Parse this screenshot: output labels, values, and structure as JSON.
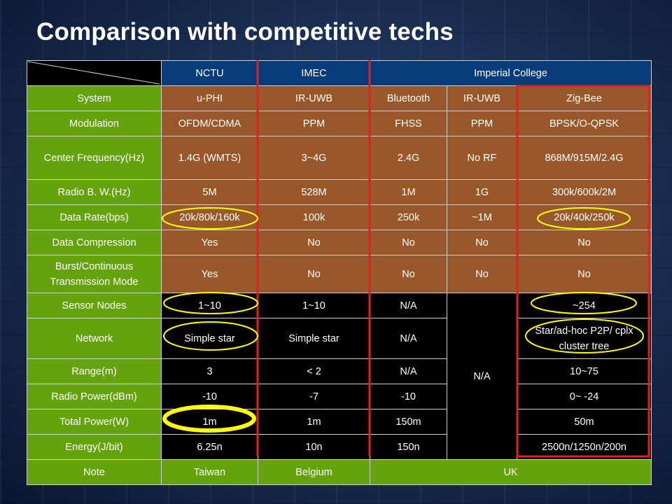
{
  "title": "Comparison with competitive techs",
  "header": [
    "NCTU",
    "IMEC",
    "Imperial College"
  ],
  "rows": {
    "system": {
      "label": "System",
      "v": [
        "u-PHI",
        "IR-UWB",
        "Bluetooth",
        "IR-UWB",
        "Zig-Bee"
      ]
    },
    "modulation": {
      "label": "Modulation",
      "v": [
        "OFDM/CDMA",
        "PPM",
        "FHSS",
        "PPM",
        "BPSK/O-QPSK"
      ]
    },
    "center_freq": {
      "label": "Center Frequency(Hz)",
      "v": [
        "1.4G (WMTS)",
        "3~4G",
        "2.4G",
        "No RF",
        "868M/915M/2.4G"
      ]
    },
    "radio_bw": {
      "label": "Radio B. W.(Hz)",
      "v": [
        "5M",
        "528M",
        "1M",
        "1G",
        "300k/600k/2M"
      ]
    },
    "data_rate": {
      "label": "Data Rate(bps)",
      "v": [
        "20k/80k/160k",
        "100k",
        "250k",
        "~1M",
        "20k/40k/250k"
      ]
    },
    "compression": {
      "label": "Data Compression",
      "v": [
        "Yes",
        "No",
        "No",
        "No",
        "No"
      ]
    },
    "burst": {
      "label": "Burst/Continuous Transmission Mode",
      "v": [
        "Yes",
        "No",
        "No",
        "No",
        "No"
      ]
    },
    "sensor_nodes": {
      "label": "Sensor Nodes",
      "v": [
        "1~10",
        "1~10",
        "N/A",
        "~254"
      ]
    },
    "network": {
      "label": "Network",
      "v": [
        "Simple star",
        "Simple star",
        "N/A",
        "Star/ad-hoc P2P/ cplx cluster tree"
      ]
    },
    "range": {
      "label": "Range(m)",
      "v": [
        "3",
        "< 2",
        "N/A",
        "10~75"
      ]
    },
    "radio_power": {
      "label": "Radio Power(dBm)",
      "v": [
        "-10",
        "-7",
        "-10",
        "0~ -24"
      ]
    },
    "total_power": {
      "label": "Total Power(W)",
      "v": [
        "1m",
        "1m",
        "150m",
        "50m"
      ]
    },
    "energy": {
      "label": "Energy(J/bit)",
      "v": [
        "6.25n",
        "10n",
        "150n",
        "2500n/1250n/200n"
      ]
    },
    "note": {
      "label": "Note",
      "v": [
        "Taiwan",
        "Belgium",
        "UK"
      ]
    }
  },
  "merged_na": "N/A",
  "colors": {
    "header_blue": "#073b7a",
    "label_green": "#64a30d",
    "cell_brown": "#98582a",
    "cell_black": "#000000",
    "highlight_red": "#e12020",
    "highlight_yellow": "#ffff00"
  }
}
